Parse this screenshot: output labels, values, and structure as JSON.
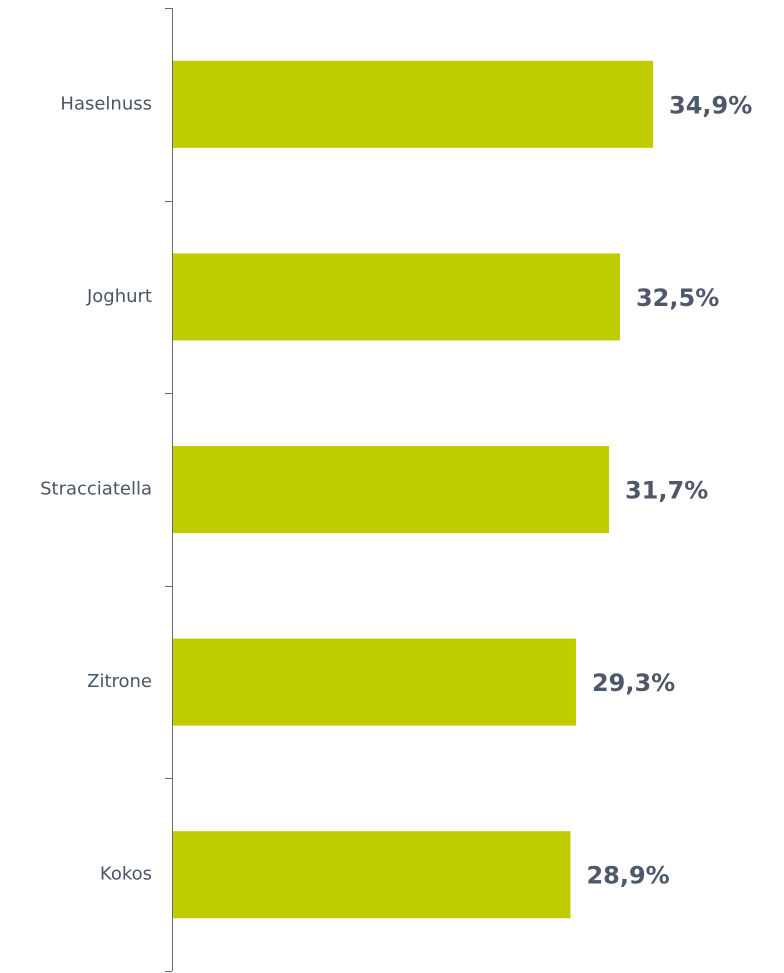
{
  "chart_data": {
    "type": "barh",
    "categories": [
      "Haselnuss",
      "Joghurt",
      "Stracciatella",
      "Zitrone",
      "Kokos"
    ],
    "values": [
      34.9,
      32.5,
      31.7,
      29.3,
      28.9
    ],
    "value_labels": [
      "34,9%",
      "32,5%",
      "31,7%",
      "29,3%",
      "28,9%"
    ],
    "color": "#bfcc00"
  }
}
